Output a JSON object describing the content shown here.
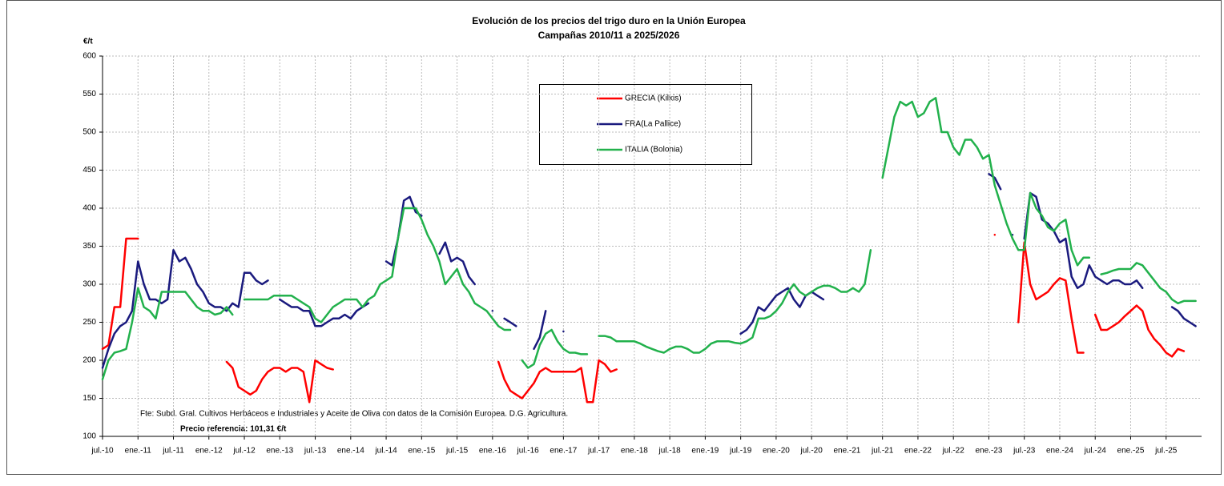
{
  "chart_data": {
    "type": "line",
    "title": "Evolución de los precios del trigo duro en la Unión Europea",
    "subtitle": "Campañas 2010/11 a 2025/2026",
    "y_label": "€/t",
    "source": "Fte: Subd. Gral. Cultivos Herbáceos e Industriales y Aceite de Oliva con datos de la Comisión Europea. D.G. Agricultura.",
    "reference": "Precio referencia: 101,31 €/t",
    "ylim": [
      100,
      600
    ],
    "yticks": [
      100,
      150,
      200,
      250,
      300,
      350,
      400,
      450,
      500,
      550,
      600
    ],
    "xlim": [
      "2010-07",
      "2026-01"
    ],
    "xticks": [
      {
        "value": "2010-07",
        "label": "jul.-10"
      },
      {
        "value": "2011-01",
        "label": "ene.-11"
      },
      {
        "value": "2011-07",
        "label": "jul.-11"
      },
      {
        "value": "2012-01",
        "label": "ene.-12"
      },
      {
        "value": "2012-07",
        "label": "jul.-12"
      },
      {
        "value": "2013-01",
        "label": "ene.-13"
      },
      {
        "value": "2013-07",
        "label": "jul.-13"
      },
      {
        "value": "2014-01",
        "label": "ene.-14"
      },
      {
        "value": "2014-07",
        "label": "jul.-14"
      },
      {
        "value": "2015-01",
        "label": "ene.-15"
      },
      {
        "value": "2015-07",
        "label": "jul.-15"
      },
      {
        "value": "2016-01",
        "label": "ene.-16"
      },
      {
        "value": "2016-07",
        "label": "jul.-16"
      },
      {
        "value": "2017-01",
        "label": "ene.-17"
      },
      {
        "value": "2017-07",
        "label": "jul.-17"
      },
      {
        "value": "2018-01",
        "label": "ene.-18"
      },
      {
        "value": "2018-07",
        "label": "jul.-18"
      },
      {
        "value": "2019-01",
        "label": "ene.-19"
      },
      {
        "value": "2019-07",
        "label": "jul.-19"
      },
      {
        "value": "2020-01",
        "label": "ene.-20"
      },
      {
        "value": "2020-07",
        "label": "jul.-20"
      },
      {
        "value": "2021-01",
        "label": "ene.-21"
      },
      {
        "value": "2021-07",
        "label": "jul.-21"
      },
      {
        "value": "2022-01",
        "label": "ene.-22"
      },
      {
        "value": "2022-07",
        "label": "jul.-22"
      },
      {
        "value": "2023-01",
        "label": "ene.-23"
      },
      {
        "value": "2023-07",
        "label": "jul.-23"
      },
      {
        "value": "2024-01",
        "label": "ene.-24"
      },
      {
        "value": "2024-07",
        "label": "jul.-24"
      },
      {
        "value": "2025-01",
        "label": "ene.-25"
      },
      {
        "value": "2025-07",
        "label": "jul.-25"
      }
    ],
    "grid": true,
    "x": [
      "2010-07",
      "2010-08",
      "2010-09",
      "2010-10",
      "2010-11",
      "2010-12",
      "2011-01",
      "2011-02",
      "2011-03",
      "2011-04",
      "2011-05",
      "2011-06",
      "2011-07",
      "2011-08",
      "2011-09",
      "2011-10",
      "2011-11",
      "2011-12",
      "2012-01",
      "2012-02",
      "2012-03",
      "2012-04",
      "2012-05",
      "2012-06",
      "2012-07",
      "2012-08",
      "2012-09",
      "2012-10",
      "2012-11",
      "2012-12",
      "2013-01",
      "2013-02",
      "2013-03",
      "2013-04",
      "2013-05",
      "2013-06",
      "2013-07",
      "2013-08",
      "2013-09",
      "2013-10",
      "2013-11",
      "2013-12",
      "2014-01",
      "2014-02",
      "2014-03",
      "2014-04",
      "2014-05",
      "2014-06",
      "2014-07",
      "2014-08",
      "2014-09",
      "2014-10",
      "2014-11",
      "2014-12",
      "2015-01",
      "2015-02",
      "2015-03",
      "2015-04",
      "2015-05",
      "2015-06",
      "2015-07",
      "2015-08",
      "2015-09",
      "2015-10",
      "2015-11",
      "2015-12",
      "2016-01",
      "2016-02",
      "2016-03",
      "2016-04",
      "2016-05",
      "2016-06",
      "2016-07",
      "2016-08",
      "2016-09",
      "2016-10",
      "2016-11",
      "2016-12",
      "2017-01",
      "2017-02",
      "2017-03",
      "2017-04",
      "2017-05",
      "2017-06",
      "2017-07",
      "2017-08",
      "2017-09",
      "2017-10",
      "2017-11",
      "2017-12",
      "2018-01",
      "2018-02",
      "2018-03",
      "2018-04",
      "2018-05",
      "2018-06",
      "2018-07",
      "2018-08",
      "2018-09",
      "2018-10",
      "2018-11",
      "2018-12",
      "2019-01",
      "2019-02",
      "2019-03",
      "2019-04",
      "2019-05",
      "2019-06",
      "2019-07",
      "2019-08",
      "2019-09",
      "2019-10",
      "2019-11",
      "2019-12",
      "2020-01",
      "2020-02",
      "2020-03",
      "2020-04",
      "2020-05",
      "2020-06",
      "2020-07",
      "2020-08",
      "2020-09",
      "2020-10",
      "2020-11",
      "2020-12",
      "2021-01",
      "2021-02",
      "2021-03",
      "2021-04",
      "2021-05",
      "2021-06",
      "2021-07",
      "2021-08",
      "2021-09",
      "2021-10",
      "2021-11",
      "2021-12",
      "2022-01",
      "2022-02",
      "2022-03",
      "2022-04",
      "2022-05",
      "2022-06",
      "2022-07",
      "2022-08",
      "2022-09",
      "2022-10",
      "2022-11",
      "2022-12",
      "2023-01",
      "2023-02",
      "2023-03",
      "2023-04",
      "2023-05",
      "2023-06",
      "2023-07",
      "2023-08",
      "2023-09",
      "2023-10",
      "2023-11",
      "2023-12",
      "2024-01",
      "2024-02",
      "2024-03",
      "2024-04",
      "2024-05",
      "2024-06",
      "2024-07",
      "2024-08",
      "2024-09",
      "2024-10",
      "2024-11",
      "2024-12",
      "2025-01",
      "2025-02",
      "2025-03",
      "2025-04",
      "2025-05",
      "2025-06",
      "2025-07",
      "2025-08",
      "2025-09",
      "2025-10",
      "2025-11",
      "2025-12"
    ],
    "series": [
      {
        "name": "GRECIA (Kilkis)",
        "color": "#ff0000",
        "values": [
          215,
          220,
          270,
          270,
          360,
          360,
          360,
          null,
          null,
          null,
          null,
          null,
          null,
          null,
          null,
          null,
          null,
          null,
          null,
          null,
          null,
          198,
          190,
          165,
          160,
          155,
          160,
          175,
          185,
          190,
          190,
          185,
          190,
          190,
          185,
          145,
          200,
          195,
          190,
          188,
          null,
          null,
          null,
          null,
          null,
          null,
          null,
          null,
          null,
          null,
          null,
          null,
          null,
          null,
          null,
          null,
          null,
          null,
          null,
          null,
          null,
          null,
          null,
          null,
          null,
          null,
          null,
          198,
          175,
          160,
          155,
          150,
          160,
          170,
          185,
          190,
          185,
          185,
          185,
          185,
          185,
          190,
          145,
          145,
          200,
          195,
          185,
          188,
          null,
          null,
          null,
          null,
          null,
          null,
          null,
          null,
          null,
          null,
          null,
          null,
          null,
          null,
          null,
          null,
          null,
          null,
          null,
          null,
          null,
          null,
          null,
          null,
          null,
          null,
          null,
          null,
          null,
          null,
          null,
          null,
          null,
          null,
          null,
          null,
          null,
          null,
          null,
          null,
          null,
          null,
          null,
          null,
          null,
          null,
          null,
          null,
          null,
          null,
          null,
          null,
          null,
          null,
          null,
          null,
          null,
          null,
          null,
          null,
          null,
          null,
          null,
          365,
          null,
          null,
          null,
          250,
          355,
          300,
          280,
          285,
          290,
          300,
          308,
          305,
          255,
          210,
          210,
          null,
          260,
          240,
          240,
          245,
          250,
          258,
          265,
          272,
          265,
          240,
          228,
          220,
          210,
          205,
          215,
          212,
          null,
          null
        ]
      },
      {
        "name": "FRA(La Pallice)",
        "color": "#1a1a7e",
        "values": [
          190,
          215,
          235,
          245,
          250,
          265,
          330,
          300,
          280,
          280,
          275,
          280,
          345,
          330,
          335,
          320,
          300,
          290,
          275,
          270,
          270,
          265,
          275,
          270,
          315,
          315,
          305,
          300,
          305,
          null,
          280,
          275,
          270,
          270,
          265,
          265,
          245,
          245,
          250,
          255,
          255,
          260,
          255,
          265,
          270,
          275,
          null,
          null,
          330,
          325,
          360,
          410,
          415,
          395,
          390,
          null,
          null,
          340,
          355,
          330,
          335,
          330,
          310,
          300,
          null,
          null,
          265,
          null,
          255,
          250,
          245,
          null,
          null,
          215,
          230,
          265,
          null,
          null,
          238,
          null,
          null,
          null,
          null,
          null,
          null,
          null,
          null,
          null,
          null,
          null,
          null,
          null,
          null,
          null,
          null,
          null,
          null,
          null,
          null,
          null,
          null,
          null,
          null,
          null,
          null,
          null,
          null,
          null,
          235,
          240,
          250,
          270,
          265,
          275,
          285,
          290,
          295,
          280,
          270,
          285,
          290,
          285,
          280,
          null,
          null,
          null,
          null,
          null,
          null,
          null,
          null,
          null,
          null,
          null,
          null,
          null,
          null,
          null,
          null,
          null,
          null,
          null,
          null,
          null,
          null,
          null,
          null,
          null,
          null,
          null,
          445,
          440,
          425,
          null,
          365,
          null,
          360,
          420,
          415,
          385,
          380,
          370,
          355,
          360,
          310,
          295,
          300,
          325,
          310,
          305,
          300,
          305,
          305,
          300,
          300,
          305,
          295,
          null,
          null,
          null,
          null,
          270,
          265,
          255,
          250,
          245
        ]
      },
      {
        "name": "ITALIA (Bolonia)",
        "color": "#22b14c",
        "values": [
          175,
          200,
          210,
          212,
          215,
          250,
          295,
          270,
          265,
          255,
          290,
          290,
          290,
          290,
          290,
          280,
          270,
          265,
          265,
          260,
          262,
          270,
          260,
          null,
          280,
          280,
          280,
          280,
          280,
          285,
          285,
          285,
          285,
          280,
          275,
          270,
          255,
          250,
          260,
          270,
          275,
          280,
          280,
          280,
          270,
          280,
          285,
          300,
          305,
          310,
          360,
          400,
          400,
          400,
          385,
          365,
          350,
          330,
          300,
          310,
          320,
          300,
          290,
          275,
          270,
          265,
          255,
          245,
          240,
          240,
          null,
          200,
          190,
          195,
          220,
          235,
          240,
          225,
          215,
          210,
          210,
          208,
          208,
          null,
          232,
          232,
          230,
          225,
          225,
          225,
          225,
          222,
          218,
          215,
          212,
          210,
          215,
          218,
          218,
          215,
          210,
          210,
          215,
          222,
          225,
          225,
          225,
          223,
          222,
          225,
          230,
          255,
          255,
          258,
          265,
          275,
          290,
          300,
          290,
          285,
          290,
          295,
          298,
          298,
          295,
          290,
          290,
          295,
          290,
          300,
          345,
          null,
          440,
          480,
          520,
          540,
          535,
          540,
          520,
          525,
          540,
          545,
          500,
          500,
          480,
          470,
          490,
          490,
          480,
          465,
          470,
          430,
          405,
          380,
          360,
          345,
          345,
          420,
          400,
          390,
          375,
          370,
          380,
          385,
          345,
          325,
          335,
          335,
          null,
          313,
          315,
          318,
          320,
          320,
          320,
          328,
          325,
          315,
          305,
          295,
          290,
          280,
          275,
          278,
          278,
          278
        ]
      }
    ]
  }
}
